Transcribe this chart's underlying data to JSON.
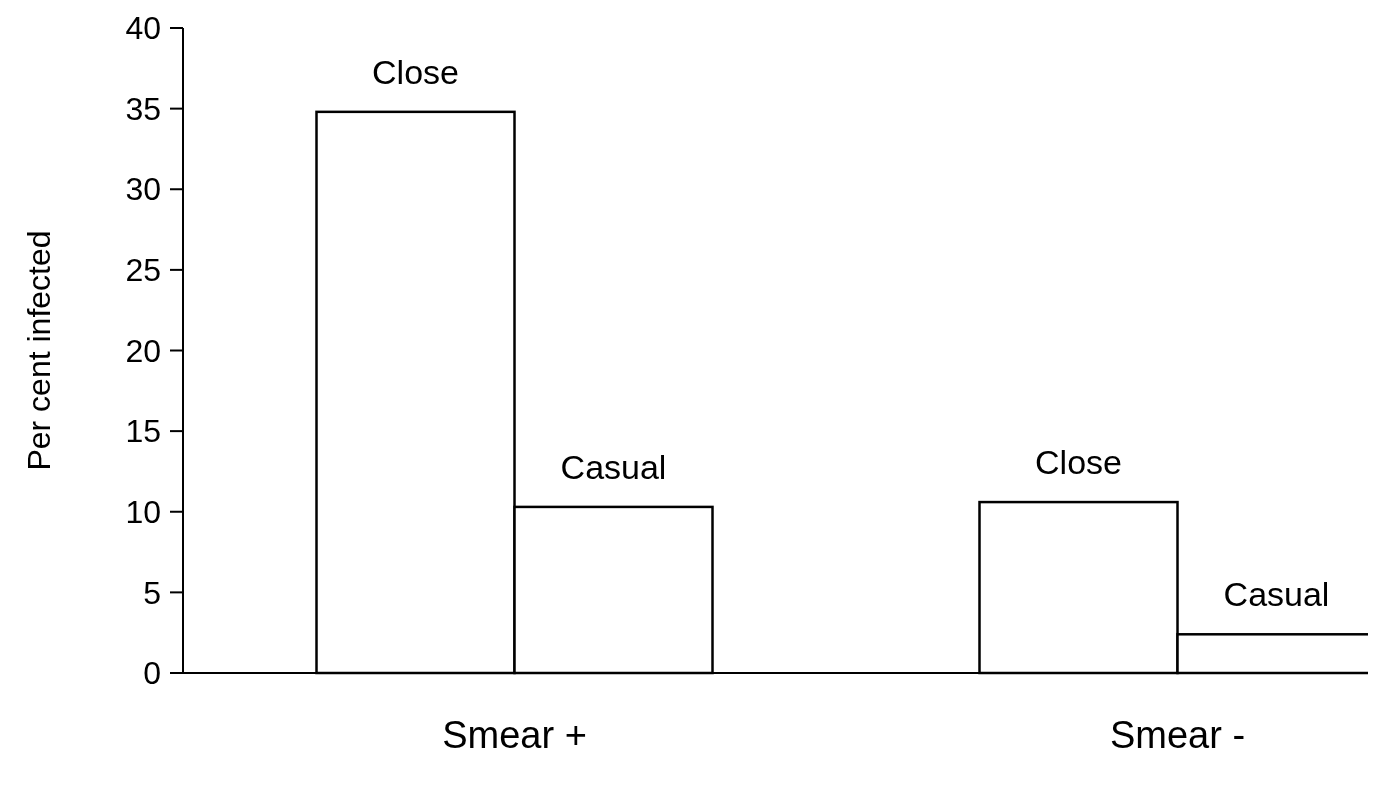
{
  "chart_data": {
    "type": "bar",
    "ylabel": "Per cent infected",
    "categories": [
      "Smear +",
      "Smear -"
    ],
    "series": [
      {
        "name": "Close",
        "color": "#ffffff",
        "values": [
          34.8,
          10.6
        ]
      },
      {
        "name": "Casual",
        "color": "#ffffff",
        "values": [
          10.3,
          2.4
        ]
      }
    ],
    "ylim": [
      0,
      40
    ],
    "yticks": [
      0,
      5,
      10,
      15,
      20,
      25,
      30,
      35,
      40
    ]
  }
}
